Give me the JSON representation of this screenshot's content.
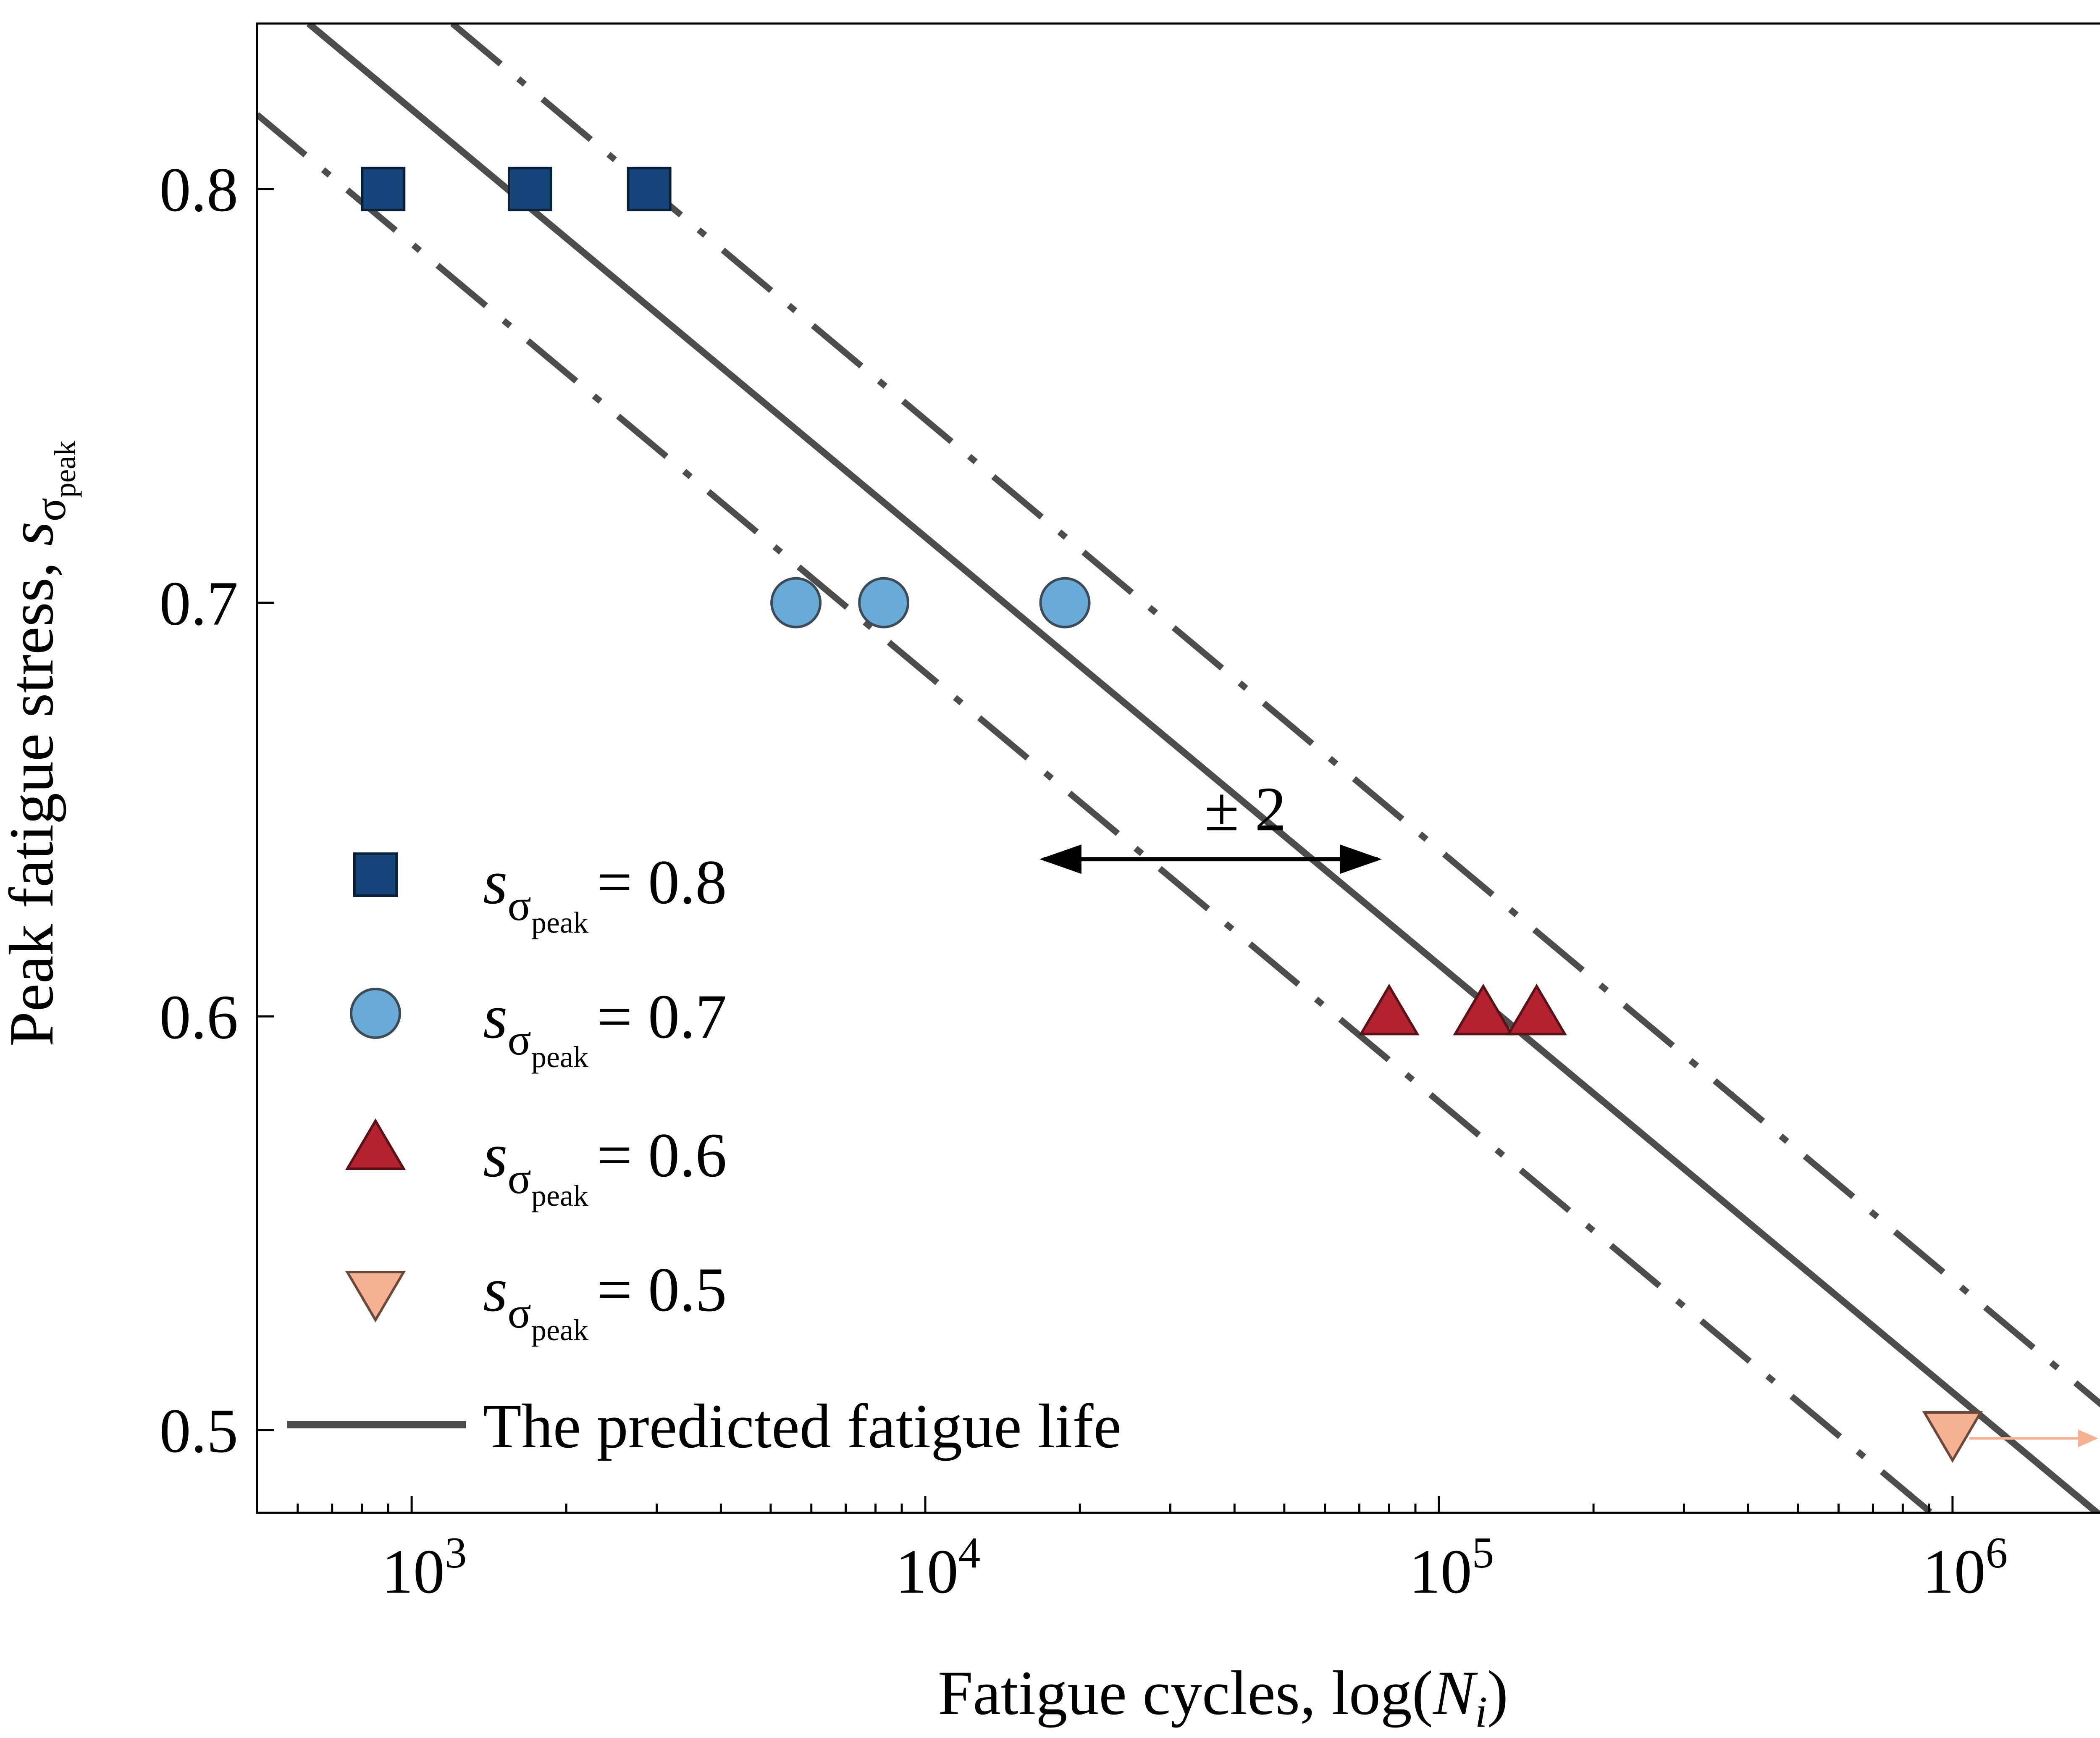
{
  "chart_data": {
    "type": "scatter",
    "title": "",
    "xlabel": "Fatigue cycles, log(N_i)",
    "xlabel_parts": {
      "prefix": "Fatigue cycles, log(",
      "var": "N",
      "sub": "i",
      "suffix": ")"
    },
    "ylabel": "Peak fatigue stress, s_σpeak",
    "ylabel_parts": {
      "prefix": "Peak fatigue stress, ",
      "var": "s",
      "sub": "σ",
      "subsub": "peak"
    },
    "x_scale": "log",
    "xlim": [
      500,
      2000000
    ],
    "ylim": [
      0.48,
      0.84
    ],
    "x_ticks": [
      {
        "value": 1000,
        "base": "10",
        "exp": "3"
      },
      {
        "value": 10000,
        "base": "10",
        "exp": "4"
      },
      {
        "value": 100000,
        "base": "10",
        "exp": "5"
      },
      {
        "value": 1000000,
        "base": "10",
        "exp": "6"
      }
    ],
    "y_ticks": [
      {
        "value": 0.5,
        "label": "0.5"
      },
      {
        "value": 0.6,
        "label": "0.6"
      },
      {
        "value": 0.7,
        "label": "0.7"
      },
      {
        "value": 0.8,
        "label": "0.8"
      }
    ],
    "grid": false,
    "legend_position": "lower-left",
    "series": [
      {
        "name": "s_σpeak = 0.8",
        "label_value": "= 0.8",
        "marker": "square",
        "color": "#15457A",
        "points": [
          {
            "x": 880,
            "y": 0.8
          },
          {
            "x": 1700,
            "y": 0.8
          },
          {
            "x": 2900,
            "y": 0.8
          }
        ]
      },
      {
        "name": "s_σpeak = 0.7",
        "label_value": "= 0.7",
        "marker": "circle",
        "color": "#6AAAD6",
        "points": [
          {
            "x": 5600,
            "y": 0.7
          },
          {
            "x": 8300,
            "y": 0.7
          },
          {
            "x": 18700,
            "y": 0.7
          }
        ]
      },
      {
        "name": "s_σpeak = 0.6",
        "label_value": "= 0.6",
        "marker": "triangle-up",
        "color": "#B3222F",
        "points": [
          {
            "x": 80000,
            "y": 0.6
          },
          {
            "x": 122000,
            "y": 0.6
          },
          {
            "x": 155000,
            "y": 0.6
          }
        ]
      },
      {
        "name": "s_σpeak = 0.5",
        "label_value": "= 0.5",
        "marker": "triangle-down",
        "color": "#F6B192",
        "points": [
          {
            "x": 1000000,
            "y": 0.5,
            "runout": true
          }
        ]
      }
    ],
    "lines": [
      {
        "name": "The predicted fatigue life",
        "style": "solid",
        "color": "#4D4D4D",
        "points": [
          [
            630,
            0.84
          ],
          [
            2000000,
            0.478
          ]
        ]
      },
      {
        "name": "upper bound",
        "style": "dashdot",
        "color": "#4D4D4D",
        "points": [
          [
            1200,
            0.84
          ],
          [
            2000000,
            0.505
          ]
        ]
      },
      {
        "name": "lower bound",
        "style": "dashdot",
        "color": "#4D4D4D",
        "points": [
          [
            500,
            0.818
          ],
          [
            950000,
            0.478
          ]
        ]
      }
    ],
    "runout_arrow": {
      "from_x": 1000000,
      "to_x": 1900000,
      "y": 0.498,
      "color": "#F6B192"
    },
    "annotation": {
      "text": "± 2",
      "text_x": 42000,
      "text_y": 0.645,
      "arrow_from_x": 17000,
      "arrow_to_x": 76000,
      "arrow_y": 0.638
    },
    "legend_line_label": "The predicted fatigue life",
    "legend_symbol": {
      "var": "s",
      "sub": "σ",
      "subsub": "peak"
    }
  }
}
